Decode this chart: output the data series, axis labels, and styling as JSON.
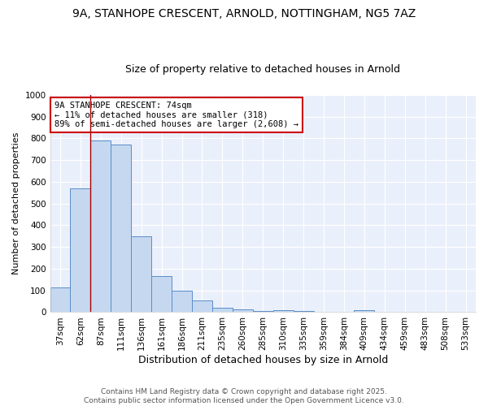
{
  "title1": "9A, STANHOPE CRESCENT, ARNOLD, NOTTINGHAM, NG5 7AZ",
  "title2": "Size of property relative to detached houses in Arnold",
  "xlabel": "Distribution of detached houses by size in Arnold",
  "ylabel": "Number of detached properties",
  "categories": [
    "37sqm",
    "62sqm",
    "87sqm",
    "111sqm",
    "136sqm",
    "161sqm",
    "186sqm",
    "211sqm",
    "235sqm",
    "260sqm",
    "285sqm",
    "310sqm",
    "335sqm",
    "359sqm",
    "384sqm",
    "409sqm",
    "434sqm",
    "459sqm",
    "483sqm",
    "508sqm",
    "533sqm"
  ],
  "values": [
    115,
    570,
    790,
    770,
    350,
    165,
    100,
    55,
    20,
    12,
    5,
    10,
    4,
    0,
    0,
    8,
    0,
    0,
    0,
    0,
    0
  ],
  "bar_color": "#c5d8f0",
  "bar_edge_color": "#5b8dc8",
  "background_color": "#ffffff",
  "plot_bg_color": "#eaf0fb",
  "grid_color": "#ffffff",
  "annotation_text": "9A STANHOPE CRESCENT: 74sqm\n← 11% of detached houses are smaller (318)\n89% of semi-detached houses are larger (2,608) →",
  "annotation_box_color": "#ffffff",
  "annotation_box_edge_color": "#cc0000",
  "red_line_x": 1.5,
  "ylim": [
    0,
    1000
  ],
  "yticks": [
    0,
    100,
    200,
    300,
    400,
    500,
    600,
    700,
    800,
    900,
    1000
  ],
  "footer": "Contains HM Land Registry data © Crown copyright and database right 2025.\nContains public sector information licensed under the Open Government Licence v3.0.",
  "title1_fontsize": 10,
  "title2_fontsize": 9,
  "xlabel_fontsize": 9,
  "ylabel_fontsize": 8,
  "tick_fontsize": 7.5,
  "annotation_fontsize": 7.5,
  "footer_fontsize": 6.5
}
